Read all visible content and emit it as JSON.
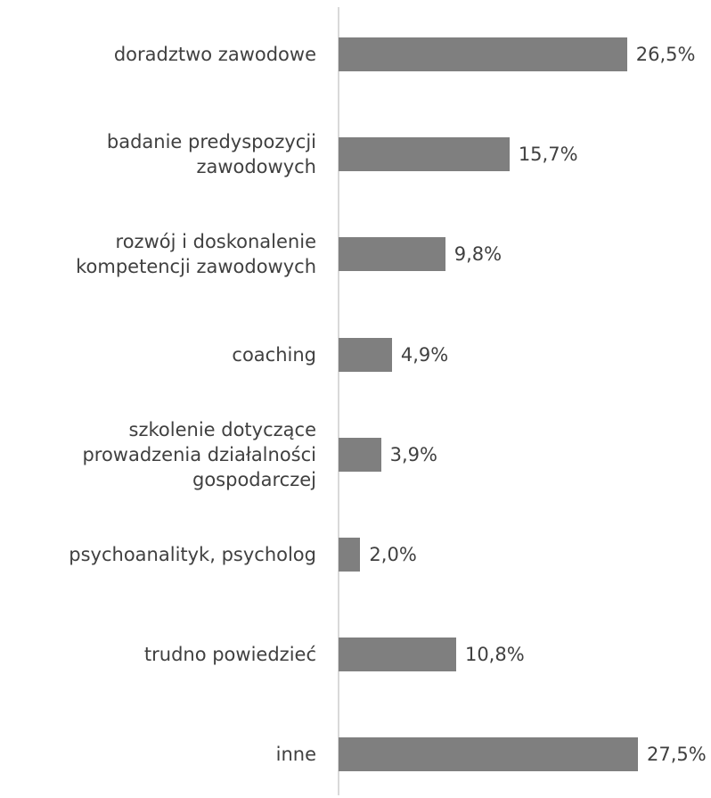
{
  "chart_data": {
    "type": "bar",
    "orientation": "horizontal",
    "categories": [
      "doradztwo zawodowe",
      "badanie predyspozycji\nzawodowych",
      "rozwój i doskonalenie\nkompetencji zawodowych",
      "coaching",
      "szkolenie dotyczące\nprowadzenia działalności\ngospodarczej",
      "psychoanalityk, psycholog",
      "trudno powiedzieć",
      "inne"
    ],
    "values": [
      26.5,
      15.7,
      9.8,
      4.9,
      3.9,
      2.0,
      10.8,
      27.5
    ],
    "value_labels": [
      "26,5%",
      "15,7%",
      "9,8%",
      "4,9%",
      "3,9%",
      "2,0%",
      "10,8%",
      "27,5%"
    ],
    "color": "#7f7f7f"
  }
}
